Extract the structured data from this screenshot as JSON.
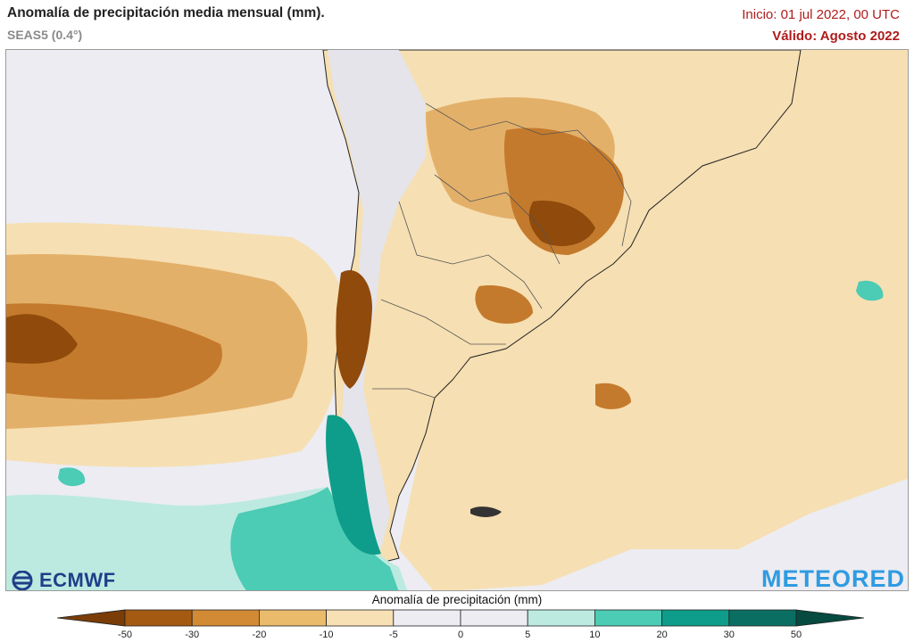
{
  "header": {
    "title": "Anomalía de precipitación media mensual (mm).",
    "model": "SEAS5 (0.4°)",
    "init": "Inicio: 01 jul 2022, 00 UTC",
    "valid": "Válido: Agosto 2022"
  },
  "logos": {
    "ecmwf": "ECMWF",
    "meteored": "METEORED"
  },
  "legend": {
    "title": "Anomalía de precipitación (mm)",
    "ticks": [
      "-50",
      "-30",
      "-20",
      "-10",
      "-5",
      "0",
      "5",
      "10",
      "20",
      "30",
      "50"
    ],
    "colors": [
      "#7a3d08",
      "#a55a12",
      "#d28a34",
      "#e9bb6a",
      "#f7e0b3",
      "#ececf2",
      "#ececf2",
      "#bdeae0",
      "#4ccbb5",
      "#0e9d8a",
      "#0a6f62",
      "#064a40"
    ]
  },
  "map": {
    "region": "South America (southern cone)",
    "palette": {
      "dry_strong": "#8f4a0c",
      "dry_med": "#c47a2c",
      "dry_light": "#e3b06a",
      "dry_faint": "#f6dfb2",
      "neutral": "#ececf2",
      "wet_light": "#bdeae0",
      "wet_med": "#4ccbb5",
      "wet_strong": "#0e9d8a"
    }
  }
}
